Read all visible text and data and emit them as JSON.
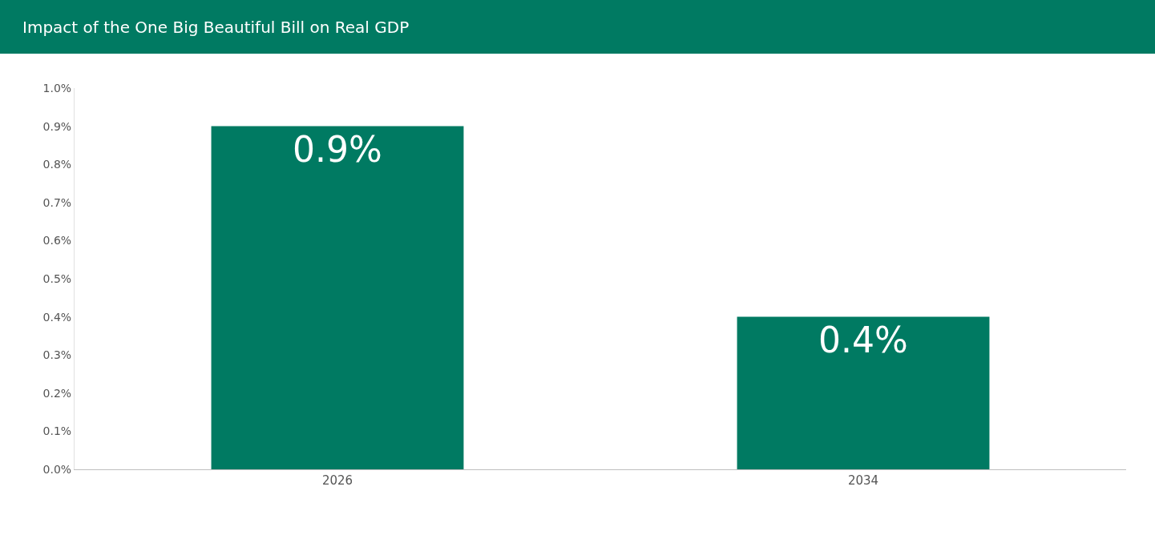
{
  "chart_data": {
    "type": "bar",
    "title": "Impact of the One Big Beautiful Bill on Real GDP",
    "categories": [
      "2026",
      "2034"
    ],
    "values": [
      0.9,
      0.4
    ],
    "value_labels": [
      "0.9%",
      "0.4%"
    ],
    "color": "#007a62",
    "ylim": [
      0,
      1.0
    ],
    "yticks": [
      {
        "value": 0,
        "label": "0.0%"
      },
      {
        "value": 0.1,
        "label": "0.1%"
      },
      {
        "value": 0.2,
        "label": "0.2%"
      },
      {
        "value": 0.3,
        "label": "0.3%"
      },
      {
        "value": 0.4,
        "label": "0.4%"
      },
      {
        "value": 0.5,
        "label": "0.5%"
      },
      {
        "value": 0.6,
        "label": "0.6%"
      },
      {
        "value": 0.7,
        "label": "0.7%"
      },
      {
        "value": 0.8,
        "label": "0.8%"
      },
      {
        "value": 0.9,
        "label": "0.9%"
      },
      {
        "value": 1.0,
        "label": "1.0%"
      }
    ]
  }
}
